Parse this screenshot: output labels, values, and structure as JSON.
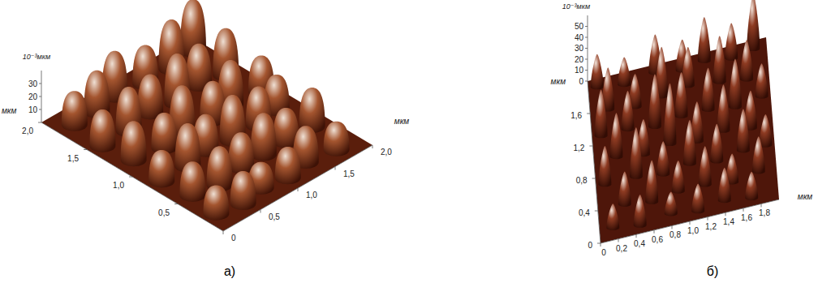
{
  "chart_data": [
    {
      "type": "surface",
      "title": "а)",
      "x_label": "мкм",
      "y_label": "мкм",
      "z_label": "10⁻³мкм",
      "color": "#a4552f",
      "xlim": [
        0,
        2
      ],
      "ylim": [
        0,
        2
      ],
      "zlim": [
        0,
        40
      ],
      "xticks": [
        0,
        {
          "value": 0.5,
          "label": "0,5"
        },
        {
          "value": 1,
          "label": "1,0"
        },
        {
          "value": 1.5,
          "label": "1,5"
        },
        {
          "value": 2,
          "label": "2,0"
        }
      ],
      "yticks": [
        {
          "value": 0.5,
          "label": "0,5"
        },
        {
          "value": 1,
          "label": "1,0"
        },
        {
          "value": 1.5,
          "label": "1,5"
        },
        {
          "value": 2,
          "label": "2,0"
        }
      ],
      "zticks": [
        10,
        20,
        30
      ],
      "peaks": [
        [
          0.15,
          0.2,
          22
        ],
        [
          0.45,
          0.15,
          25
        ],
        [
          0.75,
          0.2,
          20
        ],
        [
          1.05,
          0.15,
          24
        ],
        [
          1.35,
          0.2,
          28
        ],
        [
          1.7,
          0.15,
          22
        ],
        [
          0.2,
          0.5,
          26
        ],
        [
          0.5,
          0.45,
          30
        ],
        [
          0.85,
          0.5,
          27
        ],
        [
          1.15,
          0.5,
          32
        ],
        [
          1.45,
          0.5,
          26
        ],
        [
          1.8,
          0.5,
          30
        ],
        [
          0.15,
          0.8,
          24
        ],
        [
          0.5,
          0.8,
          33
        ],
        [
          0.8,
          0.85,
          28
        ],
        [
          1.1,
          0.8,
          35
        ],
        [
          1.45,
          0.8,
          30
        ],
        [
          1.75,
          0.85,
          27
        ],
        [
          0.2,
          1.15,
          30
        ],
        [
          0.55,
          1.1,
          27
        ],
        [
          0.85,
          1.15,
          36
        ],
        [
          1.2,
          1.1,
          30
        ],
        [
          1.5,
          1.15,
          34
        ],
        [
          1.85,
          1.1,
          28
        ],
        [
          0.15,
          1.45,
          28
        ],
        [
          0.5,
          1.45,
          34
        ],
        [
          0.85,
          1.5,
          30
        ],
        [
          1.15,
          1.45,
          38
        ],
        [
          1.5,
          1.5,
          32
        ],
        [
          1.8,
          1.45,
          36
        ],
        [
          0.2,
          1.8,
          26
        ],
        [
          0.5,
          1.8,
          32
        ],
        [
          0.8,
          1.85,
          35
        ],
        [
          1.15,
          1.8,
          30
        ],
        [
          1.5,
          1.8,
          38
        ],
        [
          1.85,
          1.85,
          40
        ]
      ]
    },
    {
      "type": "surface",
      "title": "б)",
      "x_label": "мкм",
      "y_label": "мкм",
      "z_label": "10⁻³мкм",
      "color": "#8e3b22",
      "xlim": [
        0,
        2
      ],
      "ylim": [
        0,
        2
      ],
      "zlim": [
        0,
        60
      ],
      "xticks": [
        0,
        {
          "value": 0.2,
          "label": "0,2"
        },
        {
          "value": 0.4,
          "label": "0,4"
        },
        {
          "value": 0.6,
          "label": "0,6"
        },
        {
          "value": 0.8,
          "label": "0,8"
        },
        {
          "value": 1,
          "label": "1,0"
        },
        {
          "value": 1.2,
          "label": "1,2"
        },
        {
          "value": 1.4,
          "label": "1,4"
        },
        {
          "value": 1.6,
          "label": "1,6"
        },
        {
          "value": 1.8,
          "label": "1,8"
        }
      ],
      "yticks": [
        0,
        {
          "value": 0.4,
          "label": "0,4"
        },
        {
          "value": 0.8,
          "label": "0,8"
        },
        {
          "value": 1.2,
          "label": "1,2"
        },
        {
          "value": 1.6,
          "label": "1,6"
        }
      ],
      "zticks": [
        0,
        10,
        20,
        30,
        40,
        50
      ],
      "peaks": [
        [
          0.1,
          1.9,
          30
        ],
        [
          0.4,
          1.85,
          25
        ],
        [
          0.75,
          1.9,
          35
        ],
        [
          1.05,
          1.85,
          28
        ],
        [
          1.3,
          1.9,
          40
        ],
        [
          1.6,
          1.85,
          32
        ],
        [
          1.85,
          1.9,
          50
        ],
        [
          0.2,
          1.6,
          38
        ],
        [
          0.5,
          1.55,
          30
        ],
        [
          0.8,
          1.6,
          45
        ],
        [
          1.1,
          1.65,
          35
        ],
        [
          1.45,
          1.6,
          42
        ],
        [
          1.75,
          1.55,
          36
        ],
        [
          0.1,
          1.3,
          42
        ],
        [
          0.4,
          1.3,
          35
        ],
        [
          0.7,
          1.25,
          48
        ],
        [
          1.0,
          1.3,
          40
        ],
        [
          1.3,
          1.3,
          38
        ],
        [
          1.6,
          1.25,
          44
        ],
        [
          1.9,
          1.3,
          30
        ],
        [
          0.25,
          1.0,
          40
        ],
        [
          0.55,
          0.95,
          32
        ],
        [
          0.85,
          1.0,
          55
        ],
        [
          1.15,
          0.95,
          36
        ],
        [
          1.45,
          1.0,
          42
        ],
        [
          1.75,
          0.95,
          34
        ],
        [
          0.1,
          0.7,
          35
        ],
        [
          0.45,
          0.7,
          45
        ],
        [
          0.75,
          0.65,
          30
        ],
        [
          1.05,
          0.7,
          40
        ],
        [
          1.35,
          0.65,
          34
        ],
        [
          1.65,
          0.7,
          38
        ],
        [
          1.9,
          0.7,
          28
        ],
        [
          0.3,
          0.4,
          30
        ],
        [
          0.6,
          0.35,
          38
        ],
        [
          0.9,
          0.4,
          28
        ],
        [
          1.2,
          0.4,
          35
        ],
        [
          1.5,
          0.35,
          26
        ],
        [
          1.8,
          0.4,
          32
        ],
        [
          0.15,
          0.15,
          22
        ],
        [
          0.45,
          0.1,
          28
        ],
        [
          0.8,
          0.15,
          20
        ],
        [
          1.1,
          0.1,
          25
        ],
        [
          1.4,
          0.15,
          30
        ],
        [
          1.7,
          0.1,
          24
        ]
      ]
    }
  ]
}
